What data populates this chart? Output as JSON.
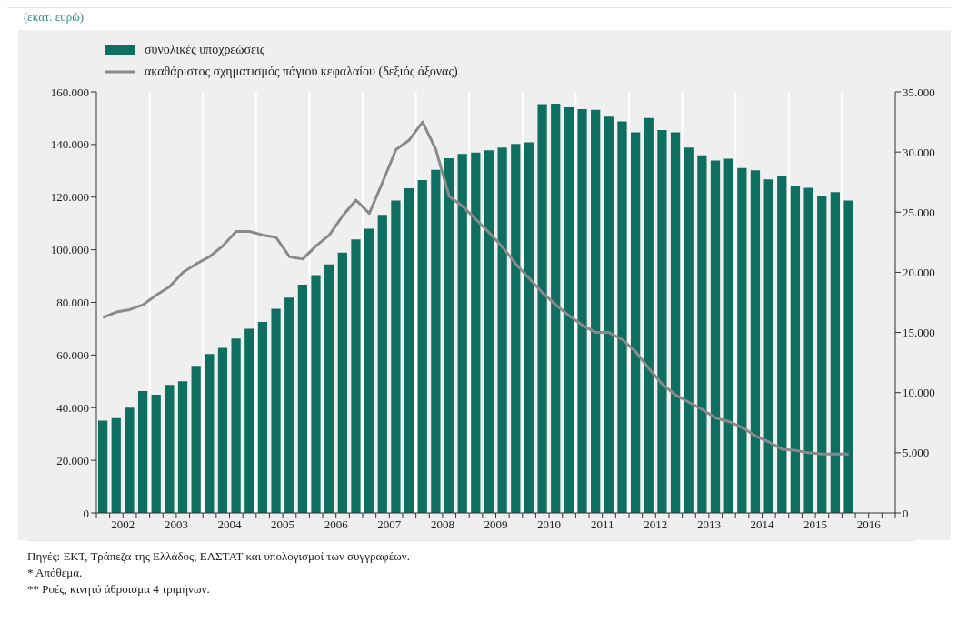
{
  "chart_data": {
    "type": "bar",
    "title": "(εκατ. ευρώ)",
    "x": [
      2002.125,
      2002.375,
      2002.625,
      2002.875,
      2003.125,
      2003.375,
      2003.625,
      2003.875,
      2004.125,
      2004.375,
      2004.625,
      2004.875,
      2005.125,
      2005.375,
      2005.625,
      2005.875,
      2006.125,
      2006.375,
      2006.625,
      2006.875,
      2007.125,
      2007.375,
      2007.625,
      2007.875,
      2008.125,
      2008.375,
      2008.625,
      2008.875,
      2009.125,
      2009.375,
      2009.625,
      2009.875,
      2010.125,
      2010.375,
      2010.625,
      2010.875,
      2011.125,
      2011.375,
      2011.625,
      2011.875,
      2012.125,
      2012.375,
      2012.625,
      2012.875,
      2013.125,
      2013.375,
      2013.625,
      2013.875,
      2014.125,
      2014.375,
      2014.625,
      2014.875,
      2015.125,
      2015.375,
      2015.625,
      2015.875,
      2016.125
    ],
    "series": [
      {
        "name": "συνολικές υποχρεώσεις",
        "color": "#0e6e60",
        "values": [
          35100,
          36000,
          40000,
          46300,
          44900,
          48600,
          50000,
          55900,
          60400,
          62700,
          66300,
          70000,
          72600,
          77600,
          81800,
          86700,
          90400,
          94400,
          98900,
          103900,
          108000,
          113300,
          118700,
          123400,
          126500,
          130400,
          134800,
          136400,
          136900,
          137800,
          138800,
          140200,
          140800,
          155300,
          155500,
          154100,
          153400,
          153200,
          150600,
          148800,
          144600,
          150100,
          145500,
          144600,
          138800,
          135900,
          133900,
          134600,
          131100,
          130200,
          126700,
          127900,
          124200,
          123500,
          120600,
          121900,
          118700
        ]
      },
      {
        "name": "ακαθάριστος σχηματισμός πάγιου κεφαλαίου (δεξιός άξονας)",
        "type": "line",
        "axis": "y2",
        "color": "#8a8a8a",
        "values": [
          16250,
          16700,
          16900,
          17300,
          18100,
          18800,
          20000,
          20700,
          21300,
          22200,
          23400,
          23400,
          23100,
          22900,
          21300,
          21100,
          22200,
          23100,
          24700,
          26000,
          24900,
          27500,
          30200,
          31000,
          32500,
          30200,
          26300,
          25500,
          24400,
          23300,
          22100,
          20700,
          19500,
          18300,
          17300,
          16400,
          15600,
          15000,
          15000,
          14400,
          13400,
          12000,
          10700,
          9800,
          9200,
          8600,
          7900,
          7600,
          7100,
          6400,
          5900,
          5300,
          5200,
          5000,
          4900,
          4900,
          4900
        ]
      }
    ],
    "xlim": [
      2002,
      2017
    ],
    "xticks": [
      {
        "value": 2002,
        "label": null
      },
      {
        "value": 2002.25,
        "label": null
      },
      {
        "value": 2002.5,
        "label": "2002"
      },
      {
        "value": 2002.75,
        "label": null
      },
      {
        "value": 2003,
        "label": null
      },
      {
        "value": 2003.25,
        "label": null
      },
      {
        "value": 2003.5,
        "label": "2003"
      },
      {
        "value": 2003.75,
        "label": null
      },
      {
        "value": 2004,
        "label": null
      },
      {
        "value": 2004.25,
        "label": null
      },
      {
        "value": 2004.5,
        "label": "2004"
      },
      {
        "value": 2004.75,
        "label": null
      },
      {
        "value": 2005,
        "label": null
      },
      {
        "value": 2005.25,
        "label": null
      },
      {
        "value": 2005.5,
        "label": "2005"
      },
      {
        "value": 2005.75,
        "label": null
      },
      {
        "value": 2006,
        "label": null
      },
      {
        "value": 2006.25,
        "label": null
      },
      {
        "value": 2006.5,
        "label": "2006"
      },
      {
        "value": 2006.75,
        "label": null
      },
      {
        "value": 2007,
        "label": null
      },
      {
        "value": 2007.25,
        "label": null
      },
      {
        "value": 2007.5,
        "label": "2007"
      },
      {
        "value": 2007.75,
        "label": null
      },
      {
        "value": 2008,
        "label": null
      },
      {
        "value": 2008.25,
        "label": null
      },
      {
        "value": 2008.5,
        "label": "2008"
      },
      {
        "value": 2008.75,
        "label": null
      },
      {
        "value": 2009,
        "label": null
      },
      {
        "value": 2009.25,
        "label": null
      },
      {
        "value": 2009.5,
        "label": "2009"
      },
      {
        "value": 2009.75,
        "label": null
      },
      {
        "value": 2010,
        "label": null
      },
      {
        "value": 2010.25,
        "label": null
      },
      {
        "value": 2010.5,
        "label": "2010"
      },
      {
        "value": 2010.75,
        "label": null
      },
      {
        "value": 2011,
        "label": null
      },
      {
        "value": 2011.25,
        "label": null
      },
      {
        "value": 2011.5,
        "label": "2011"
      },
      {
        "value": 2011.75,
        "label": null
      },
      {
        "value": 2012,
        "label": null
      },
      {
        "value": 2012.25,
        "label": null
      },
      {
        "value": 2012.5,
        "label": "2012"
      },
      {
        "value": 2012.75,
        "label": null
      },
      {
        "value": 2013,
        "label": null
      },
      {
        "value": 2013.25,
        "label": null
      },
      {
        "value": 2013.5,
        "label": "2013"
      },
      {
        "value": 2013.75,
        "label": null
      },
      {
        "value": 2014,
        "label": null
      },
      {
        "value": 2014.25,
        "label": null
      },
      {
        "value": 2014.5,
        "label": "2014"
      },
      {
        "value": 2014.75,
        "label": null
      },
      {
        "value": 2015,
        "label": null
      },
      {
        "value": 2015.25,
        "label": null
      },
      {
        "value": 2015.5,
        "label": "2015"
      },
      {
        "value": 2015.75,
        "label": null
      },
      {
        "value": 2016,
        "label": null
      },
      {
        "value": 2016.25,
        "label": null
      },
      {
        "value": 2016.5,
        "label": "2016"
      },
      {
        "value": 2016.75,
        "label": null
      },
      {
        "value": 2017,
        "label": null
      }
    ],
    "ylim": [
      0,
      160000
    ],
    "yticks": [
      0,
      {
        "value": 20000,
        "label": "20.000"
      },
      {
        "value": 40000,
        "label": "40.000"
      },
      {
        "value": 60000,
        "label": "60.000"
      },
      {
        "value": 80000,
        "label": "80.000"
      },
      {
        "value": 100000,
        "label": "100.000"
      },
      {
        "value": 120000,
        "label": "120.000"
      },
      {
        "value": 140000,
        "label": "140.000"
      },
      {
        "value": 160000,
        "label": "160.000"
      }
    ],
    "y2lim": [
      0,
      35000
    ],
    "y2ticks": [
      0,
      {
        "value": 5000,
        "label": "5.000"
      },
      {
        "value": 10000,
        "label": "10.000"
      },
      {
        "value": 15000,
        "label": "15.000"
      },
      {
        "value": 20000,
        "label": "20.000"
      },
      {
        "value": 25000,
        "label": "25.000"
      },
      {
        "value": 30000,
        "label": "30.000"
      },
      {
        "value": 35000,
        "label": "35.000"
      }
    ],
    "grid": "x",
    "legend": "top left",
    "marker": "none",
    "line_style": "solid",
    "annotations": [
      "Πηγές: ΕΚΤ, Τράπεζα της Ελλάδος, ΕΛΣΤΑΤ και υπολογισμοί των συγγραφέων.",
      "* Απόθεμα.",
      "** Ροές, κινητό άθροισμα 4 τριμήνων."
    ]
  }
}
